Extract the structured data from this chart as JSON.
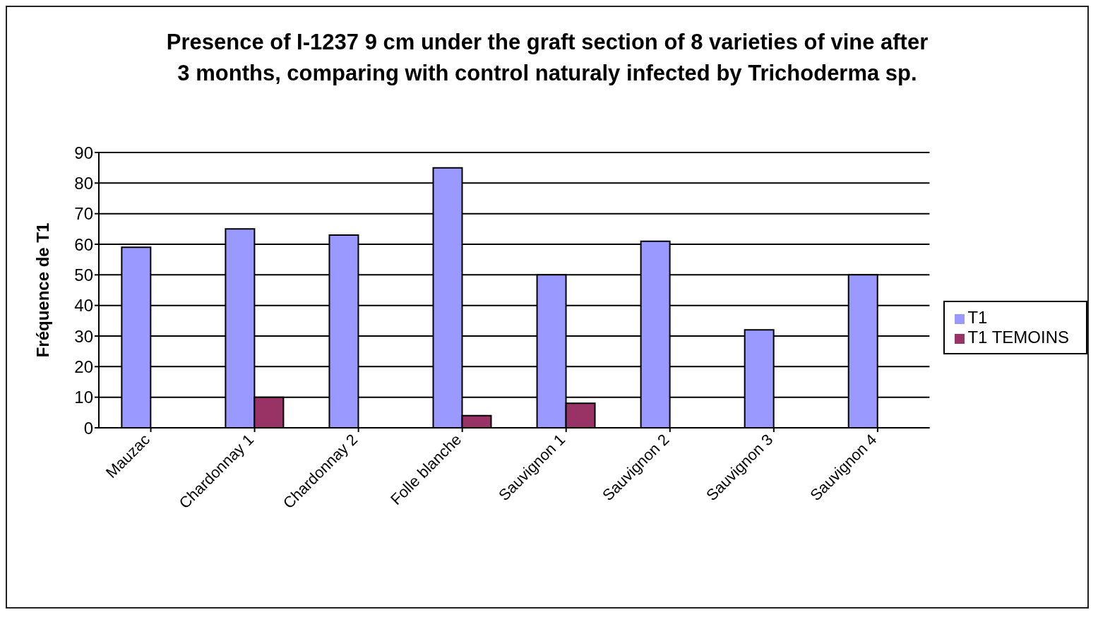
{
  "chart_data": {
    "type": "bar",
    "title": "Presence of I-1237 9 cm under the graft section of 8 varieties of vine after\n3 months, comparing with control naturaly infected by Trichoderma sp.",
    "ylabel": "Fréquence de T1",
    "categories": [
      "Mauzac",
      "Chardonnay 1",
      "Chardonnay 2",
      "Folle blanche",
      "Sauvignon 1",
      "Sauvignon 2",
      "Sauvignon 3",
      "Sauvignon 4"
    ],
    "series": [
      {
        "name": "T1",
        "color": "#9999ff",
        "values": [
          59,
          65,
          63,
          85,
          50,
          61,
          32,
          50
        ]
      },
      {
        "name": "T1 TEMOINS",
        "color": "#993366",
        "values": [
          0,
          10,
          0,
          4,
          8,
          0,
          0,
          0
        ]
      }
    ],
    "ylim": [
      0,
      90
    ],
    "yticks": [
      0,
      10,
      20,
      30,
      40,
      50,
      60,
      70,
      80,
      90
    ],
    "grid": "y",
    "legend": "right"
  }
}
